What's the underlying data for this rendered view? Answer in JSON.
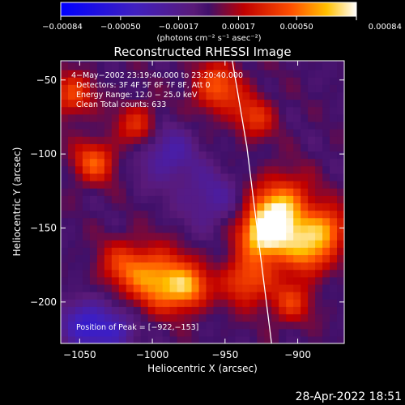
{
  "chart_data": {
    "type": "heatmap",
    "title": "Reconstructed RHESSI Image",
    "xlabel": "Heliocentric X (arcsec)",
    "ylabel": "Heliocentric Y (arcsec)",
    "xlim": [
      -1063,
      -868
    ],
    "ylim": [
      -228,
      -37
    ],
    "x_ticks": [
      -1050,
      -1000,
      -950,
      -900
    ],
    "x_tick_labels": [
      "−1050",
      "−1000",
      "−950",
      "−900"
    ],
    "y_ticks": [
      -50,
      -100,
      -150,
      -200
    ],
    "y_tick_labels": [
      "−50",
      "−100",
      "−150",
      "−200"
    ],
    "colorbar": {
      "range": [
        -0.00084,
        0.00084
      ],
      "ticks": [
        -0.00084,
        -0.0005,
        -0.00017,
        0.00017,
        0.0005,
        0.00084
      ],
      "tick_labels": [
        "−0.00084",
        "−0.00050",
        "−0.00017",
        "0.00017",
        "0.00050",
        "0.00084"
      ],
      "label": "(photons cm⁻² s⁻¹ asec⁻²)"
    },
    "annotations": [
      "4−May−2002 23:19:40.000 to 23:20:40.000",
      "Detectors: 3F 4F 5F 6F 7F 8F, Att 0",
      "Energy Range: 12.0 − 25.0 keV",
      "Clean     Total counts: 633"
    ],
    "peak_label": "Position of Peak = [−922,−153]",
    "peak": [
      -922,
      -153
    ],
    "limb": [
      [
        -945,
        -37
      ],
      [
        -935,
        -95
      ],
      [
        -928,
        -150
      ],
      [
        -918,
        -228
      ]
    ],
    "blobs": [
      {
        "x": -922,
        "y": -153,
        "r": 12,
        "value": 0.00084
      },
      {
        "x": -910,
        "y": -135,
        "r": 14,
        "value": 0.0006
      },
      {
        "x": -895,
        "y": -165,
        "r": 12,
        "value": 0.00055
      },
      {
        "x": -880,
        "y": -150,
        "r": 10,
        "value": 0.0005
      },
      {
        "x": -935,
        "y": -185,
        "r": 12,
        "value": 0.00045
      },
      {
        "x": -905,
        "y": -200,
        "r": 10,
        "value": 0.00035
      },
      {
        "x": -995,
        "y": -185,
        "r": 14,
        "value": 0.0006
      },
      {
        "x": -975,
        "y": -190,
        "r": 10,
        "value": 0.0005
      },
      {
        "x": -1020,
        "y": -175,
        "r": 12,
        "value": 0.00035
      },
      {
        "x": -1040,
        "y": -105,
        "r": 10,
        "value": 0.00045
      },
      {
        "x": -1055,
        "y": -60,
        "r": 10,
        "value": 0.0004
      },
      {
        "x": -1010,
        "y": -80,
        "r": 10,
        "value": 0.00035
      },
      {
        "x": -955,
        "y": -55,
        "r": 12,
        "value": 0.00045
      },
      {
        "x": -930,
        "y": -75,
        "r": 10,
        "value": 0.00035
      },
      {
        "x": -1045,
        "y": -215,
        "r": 12,
        "value": -0.00045
      },
      {
        "x": -990,
        "y": -100,
        "r": 14,
        "value": -0.0003
      },
      {
        "x": -960,
        "y": -130,
        "r": 14,
        "value": -0.00025
      },
      {
        "x": -1025,
        "y": -220,
        "r": 10,
        "value": -0.0003
      }
    ]
  },
  "footer": {
    "timestamp": "28-Apr-2022 18:51"
  }
}
